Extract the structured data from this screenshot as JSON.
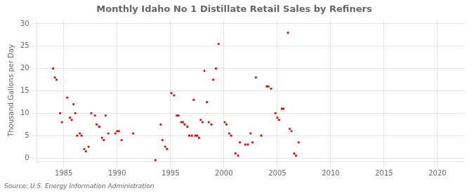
{
  "chart_data": {
    "type": "scatter",
    "title": "Monthly Idaho No 1 Distillate Retail Sales by Refiners",
    "ylabel": "Thousand Gallons per Day",
    "annotations": [
      "Source: U.S. Energy Information Administration"
    ],
    "color": "#cc1111",
    "marker": "square",
    "grid": true,
    "xlim": [
      1982.5,
      2022.5
    ],
    "ylim": [
      -0.8,
      31.0
    ],
    "xticks": [
      1985,
      1990,
      1995,
      2000,
      2005,
      2010,
      2015,
      2020
    ],
    "yticks": [
      0,
      5,
      10,
      15,
      20,
      25,
      30
    ],
    "x": [
      1984.0,
      1984.17,
      1984.33,
      1984.67,
      1984.83,
      1985.33,
      1985.58,
      1985.75,
      1985.92,
      1986.08,
      1986.25,
      1986.5,
      1986.67,
      1986.92,
      1987.08,
      1987.33,
      1987.58,
      1987.92,
      1988.08,
      1988.33,
      1988.58,
      1988.75,
      1988.92,
      1989.17,
      1989.83,
      1990.0,
      1990.17,
      1990.42,
      1991.5,
      1993.58,
      1994.08,
      1994.25,
      1994.5,
      1994.67,
      1995.08,
      1995.33,
      1995.58,
      1995.75,
      1996.0,
      1996.17,
      1996.33,
      1996.58,
      1996.75,
      1997.0,
      1997.17,
      1997.33,
      1997.5,
      1997.67,
      1997.83,
      1998.0,
      1998.17,
      1998.42,
      1998.58,
      1998.83,
      1999.0,
      1999.25,
      1999.5,
      2000.08,
      2000.25,
      2000.5,
      2000.67,
      2001.08,
      2001.33,
      2001.5,
      2002.0,
      2002.25,
      2002.5,
      2002.67,
      2003.0,
      2003.5,
      2004.0,
      2004.17,
      2004.42,
      2004.83,
      2005.0,
      2005.17,
      2005.42,
      2005.58,
      2006.0,
      2006.17,
      2006.33,
      2006.58,
      2006.75,
      2007.0
    ],
    "values": [
      20.0,
      18.0,
      17.5,
      10.0,
      8.0,
      13.5,
      9.0,
      8.5,
      12.0,
      10.0,
      5.0,
      5.5,
      5.0,
      2.0,
      1.5,
      2.5,
      10.0,
      9.5,
      7.5,
      7.0,
      4.5,
      4.0,
      9.5,
      5.5,
      5.5,
      6.0,
      6.0,
      4.0,
      5.5,
      -0.5,
      7.5,
      4.0,
      2.5,
      2.0,
      14.5,
      14.0,
      9.5,
      9.5,
      8.0,
      8.0,
      7.5,
      7.0,
      5.0,
      5.0,
      13.0,
      5.0,
      5.0,
      4.5,
      8.5,
      8.0,
      19.5,
      12.5,
      8.0,
      7.5,
      17.5,
      20.0,
      25.5,
      8.0,
      7.5,
      5.5,
      5.0,
      1.0,
      0.5,
      3.5,
      3.0,
      3.0,
      5.5,
      3.5,
      18.0,
      5.0,
      16.0,
      16.0,
      15.5,
      10.0,
      9.0,
      8.5,
      11.0,
      11.0,
      28.0,
      6.5,
      6.0,
      1.0,
      0.5,
      3.5
    ]
  }
}
